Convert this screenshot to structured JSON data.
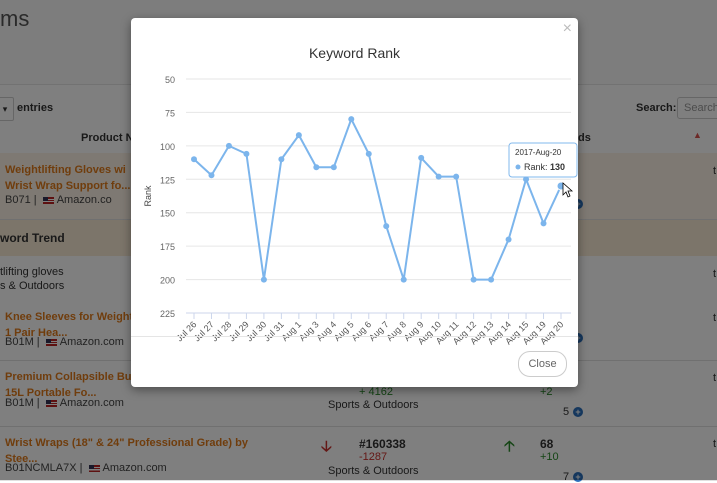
{
  "page": {
    "title": "ms"
  },
  "table_controls": {
    "entries_label": "entries",
    "search_label": "Search:",
    "search_placeholder": "Search"
  },
  "table_headers": {
    "product_name": "Product Na",
    "ds": "ds"
  },
  "rows": [
    {
      "product_line1": "Weightlifting Gloves wi",
      "product_line2": "Wrist Wrap Support fo...",
      "asin": "B071",
      "store": "Amazon.co"
    },
    {
      "product_line1": "Knee Sleeves for Weightlift",
      "product_line2": "1 Pair Hea...",
      "asin": "B01M",
      "store": "Amazon.com"
    },
    {
      "product_line1": "Premium Collapsible Bucke",
      "product_line2": "15L Portable Fo...",
      "asin": "B01M",
      "store": "Amazon.com",
      "rank_change": "+ 4162",
      "category": "Sports & Outdoors",
      "trend_change": "+2",
      "count": "5"
    },
    {
      "product_line1": "Wrist Wraps (18\" & 24\" Professional Grade) by",
      "product_line2": "Stee...",
      "asin": "B01NCMLA7X",
      "store": "Amazon.com",
      "rank": "#160338",
      "rank_change": "-1287",
      "category": "Sports & Outdoors",
      "trend_value": "68",
      "trend_change": "+10",
      "count": "7"
    }
  ],
  "keyword_trend": {
    "label": "word Trend",
    "keyword": "tlifting gloves",
    "category": "s & Outdoors"
  },
  "modal": {
    "close_x": "×",
    "close_button": "Close",
    "tooltip": {
      "date": "2017-Aug-20",
      "label": "Rank:",
      "value": "130"
    }
  },
  "chart_data": {
    "type": "line",
    "title": "Keyword Rank",
    "xlabel": "",
    "ylabel": "Rank",
    "ylim": [
      50,
      225
    ],
    "y_reversed": true,
    "yticks": [
      50,
      75,
      100,
      125,
      150,
      175,
      200,
      225
    ],
    "categories": [
      "Jul 26",
      "Jul 27",
      "Jul 28",
      "Jul 29",
      "Jul 30",
      "Jul 31",
      "Aug 1",
      "Aug 3",
      "Aug 4",
      "Aug 5",
      "Aug 6",
      "Aug 7",
      "Aug 8",
      "Aug 9",
      "Aug 10",
      "Aug 11",
      "Aug 12",
      "Aug 13",
      "Aug 14",
      "Aug 15",
      "Aug 19",
      "Aug 20"
    ],
    "values": [
      110,
      122,
      100,
      106,
      200,
      110,
      92,
      116,
      116,
      80,
      106,
      160,
      200,
      109,
      123,
      123,
      200,
      200,
      170,
      125,
      158,
      130
    ],
    "color": "#7cb5ec",
    "highlight_index": 21
  }
}
